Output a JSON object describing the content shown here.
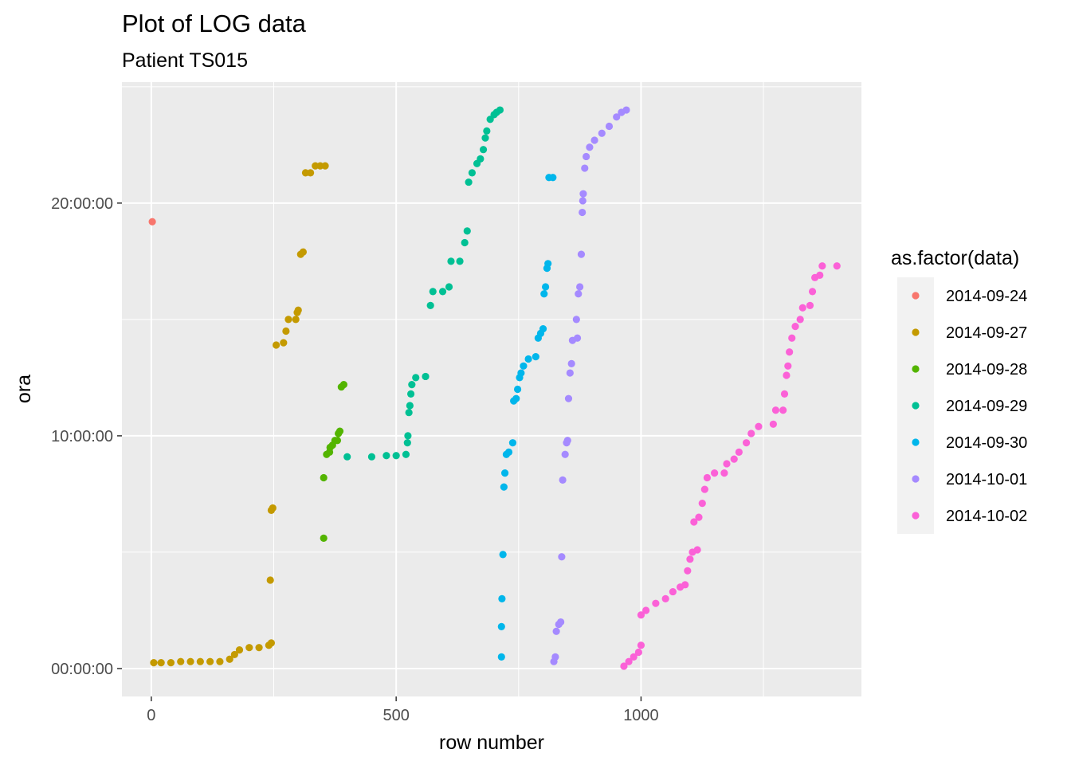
{
  "chart_data": {
    "type": "scatter",
    "title": "Plot of LOG data",
    "subtitle": "Patient TS015",
    "xlabel": "row number",
    "ylabel": "ora",
    "xlim": [
      -60,
      1450
    ],
    "ylim_hours": [
      -1.2,
      25.2
    ],
    "x_ticks": [
      0,
      500,
      1000
    ],
    "x_tick_labels": [
      "0",
      "500",
      "1000"
    ],
    "y_ticks_hours": [
      0,
      10,
      20
    ],
    "y_tick_labels": [
      "00:00:00",
      "10:00:00",
      "20:00:00"
    ],
    "grid": true,
    "legend": {
      "title": "as.factor(data)",
      "position": "right"
    },
    "series": [
      {
        "name": "2014-09-24",
        "color": "#F8766D",
        "points": [
          [
            2,
            19.2
          ]
        ]
      },
      {
        "name": "2014-09-27",
        "color": "#C49A00",
        "points": [
          [
            5,
            0.25
          ],
          [
            20,
            0.25
          ],
          [
            40,
            0.25
          ],
          [
            60,
            0.3
          ],
          [
            80,
            0.3
          ],
          [
            100,
            0.3
          ],
          [
            120,
            0.3
          ],
          [
            140,
            0.3
          ],
          [
            160,
            0.4
          ],
          [
            170,
            0.6
          ],
          [
            180,
            0.8
          ],
          [
            200,
            0.9
          ],
          [
            220,
            0.9
          ],
          [
            240,
            1.0
          ],
          [
            245,
            1.1
          ],
          [
            243,
            3.8
          ],
          [
            245,
            6.8
          ],
          [
            248,
            6.9
          ],
          [
            255,
            13.9
          ],
          [
            270,
            14.0
          ],
          [
            275,
            14.5
          ],
          [
            280,
            15.0
          ],
          [
            295,
            15.0
          ],
          [
            298,
            15.3
          ],
          [
            300,
            15.4
          ],
          [
            305,
            17.8
          ],
          [
            310,
            17.9
          ],
          [
            315,
            21.3
          ],
          [
            325,
            21.3
          ],
          [
            335,
            21.6
          ],
          [
            345,
            21.6
          ],
          [
            355,
            21.6
          ]
        ]
      },
      {
        "name": "2014-09-28",
        "color": "#53B400",
        "points": [
          [
            352,
            5.6
          ],
          [
            352,
            8.2
          ],
          [
            358,
            9.2
          ],
          [
            364,
            9.3
          ],
          [
            365,
            9.5
          ],
          [
            370,
            9.6
          ],
          [
            375,
            9.8
          ],
          [
            380,
            9.8
          ],
          [
            382,
            10.1
          ],
          [
            385,
            10.2
          ],
          [
            388,
            12.1
          ],
          [
            393,
            12.2
          ]
        ]
      },
      {
        "name": "2014-09-29",
        "color": "#00C094",
        "points": [
          [
            400,
            9.1
          ],
          [
            450,
            9.1
          ],
          [
            480,
            9.15
          ],
          [
            500,
            9.15
          ],
          [
            520,
            9.2
          ],
          [
            523,
            9.7
          ],
          [
            524,
            10.0
          ],
          [
            526,
            11.0
          ],
          [
            528,
            11.3
          ],
          [
            530,
            11.8
          ],
          [
            532,
            12.2
          ],
          [
            540,
            12.5
          ],
          [
            560,
            12.55
          ],
          [
            570,
            15.6
          ],
          [
            575,
            16.2
          ],
          [
            595,
            16.2
          ],
          [
            608,
            16.4
          ],
          [
            612,
            17.5
          ],
          [
            630,
            17.5
          ],
          [
            640,
            18.3
          ],
          [
            645,
            18.8
          ],
          [
            648,
            20.9
          ],
          [
            655,
            21.3
          ],
          [
            665,
            21.7
          ],
          [
            672,
            21.9
          ],
          [
            678,
            22.3
          ],
          [
            682,
            22.8
          ],
          [
            685,
            23.1
          ],
          [
            692,
            23.6
          ],
          [
            700,
            23.8
          ],
          [
            705,
            23.9
          ],
          [
            712,
            24.0
          ]
        ]
      },
      {
        "name": "2014-09-30",
        "color": "#00B6EB",
        "points": [
          [
            715,
            0.5
          ],
          [
            715,
            1.8
          ],
          [
            716,
            3.0
          ],
          [
            718,
            4.9
          ],
          [
            720,
            7.8
          ],
          [
            722,
            8.4
          ],
          [
            725,
            9.2
          ],
          [
            730,
            9.3
          ],
          [
            738,
            9.7
          ],
          [
            740,
            11.5
          ],
          [
            745,
            11.6
          ],
          [
            748,
            12.0
          ],
          [
            752,
            12.5
          ],
          [
            755,
            12.7
          ],
          [
            760,
            13.0
          ],
          [
            770,
            13.3
          ],
          [
            785,
            13.4
          ],
          [
            790,
            14.2
          ],
          [
            795,
            14.4
          ],
          [
            800,
            14.6
          ],
          [
            802,
            16.1
          ],
          [
            805,
            16.4
          ],
          [
            808,
            17.2
          ],
          [
            810,
            17.4
          ],
          [
            812,
            21.1
          ],
          [
            820,
            21.1
          ]
        ]
      },
      {
        "name": "2014-10-01",
        "color": "#A58AFF",
        "points": [
          [
            822,
            0.3
          ],
          [
            825,
            0.5
          ],
          [
            827,
            1.6
          ],
          [
            832,
            1.9
          ],
          [
            836,
            2.0
          ],
          [
            838,
            4.8
          ],
          [
            840,
            8.1
          ],
          [
            845,
            9.2
          ],
          [
            848,
            9.7
          ],
          [
            850,
            9.8
          ],
          [
            852,
            11.6
          ],
          [
            855,
            12.7
          ],
          [
            858,
            13.1
          ],
          [
            860,
            14.1
          ],
          [
            870,
            14.2
          ],
          [
            868,
            15.0
          ],
          [
            872,
            16.1
          ],
          [
            875,
            16.4
          ],
          [
            878,
            17.8
          ],
          [
            880,
            19.6
          ],
          [
            881,
            20.1
          ],
          [
            882,
            20.4
          ],
          [
            885,
            21.5
          ],
          [
            888,
            22.0
          ],
          [
            895,
            22.4
          ],
          [
            905,
            22.7
          ],
          [
            920,
            23.0
          ],
          [
            935,
            23.3
          ],
          [
            950,
            23.7
          ],
          [
            960,
            23.9
          ],
          [
            970,
            24.0
          ]
        ]
      },
      {
        "name": "2014-10-02",
        "color": "#FB61D7",
        "points": [
          [
            965,
            0.1
          ],
          [
            975,
            0.3
          ],
          [
            985,
            0.5
          ],
          [
            995,
            0.7
          ],
          [
            1000,
            1.0
          ],
          [
            1000,
            2.3
          ],
          [
            1010,
            2.5
          ],
          [
            1030,
            2.8
          ],
          [
            1050,
            3.0
          ],
          [
            1065,
            3.3
          ],
          [
            1080,
            3.5
          ],
          [
            1090,
            3.6
          ],
          [
            1095,
            4.2
          ],
          [
            1100,
            4.7
          ],
          [
            1105,
            5.0
          ],
          [
            1115,
            5.1
          ],
          [
            1108,
            6.3
          ],
          [
            1118,
            6.5
          ],
          [
            1125,
            7.1
          ],
          [
            1130,
            7.7
          ],
          [
            1135,
            8.2
          ],
          [
            1150,
            8.4
          ],
          [
            1170,
            8.4
          ],
          [
            1175,
            8.8
          ],
          [
            1190,
            9.0
          ],
          [
            1200,
            9.3
          ],
          [
            1215,
            9.7
          ],
          [
            1225,
            10.1
          ],
          [
            1240,
            10.4
          ],
          [
            1270,
            10.5
          ],
          [
            1275,
            11.1
          ],
          [
            1290,
            11.1
          ],
          [
            1293,
            11.8
          ],
          [
            1297,
            12.6
          ],
          [
            1300,
            13.0
          ],
          [
            1303,
            13.6
          ],
          [
            1308,
            14.2
          ],
          [
            1315,
            14.7
          ],
          [
            1325,
            15.0
          ],
          [
            1330,
            15.5
          ],
          [
            1345,
            15.6
          ],
          [
            1350,
            16.2
          ],
          [
            1355,
            16.8
          ],
          [
            1365,
            16.9
          ],
          [
            1370,
            17.3
          ],
          [
            1400,
            17.3
          ]
        ]
      }
    ]
  }
}
